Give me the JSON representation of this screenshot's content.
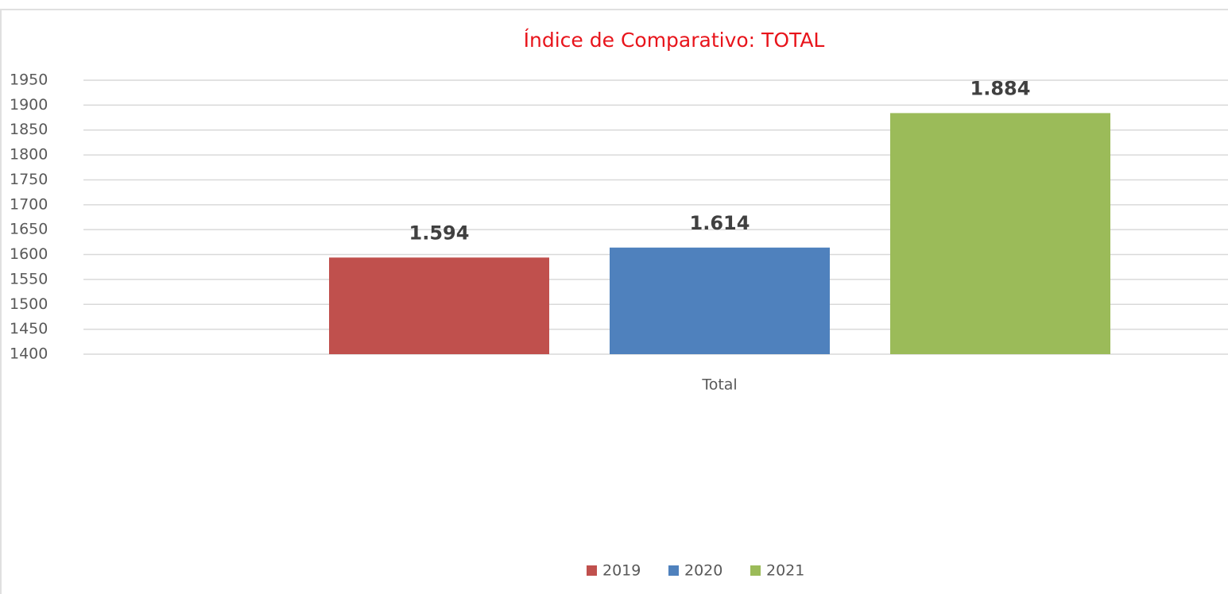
{
  "chart_data": {
    "type": "bar",
    "title": "Índice de Comparativo: TOTAL",
    "categories": [
      "Total"
    ],
    "series": [
      {
        "name": "2019",
        "color": "#c0504d",
        "values": [
          1594
        ],
        "value_labels": [
          "1.594"
        ]
      },
      {
        "name": "2020",
        "color": "#4f81bd",
        "values": [
          1614
        ],
        "value_labels": [
          "1.614"
        ]
      },
      {
        "name": "2021",
        "color": "#9bbb59",
        "values": [
          1884
        ],
        "value_labels": [
          "1.884"
        ]
      }
    ],
    "ylim": [
      1400,
      1950
    ],
    "yticks": [
      1400,
      1450,
      1500,
      1550,
      1600,
      1650,
      1700,
      1750,
      1800,
      1850,
      1900,
      1950
    ],
    "grid": true,
    "legend": "bottom"
  }
}
